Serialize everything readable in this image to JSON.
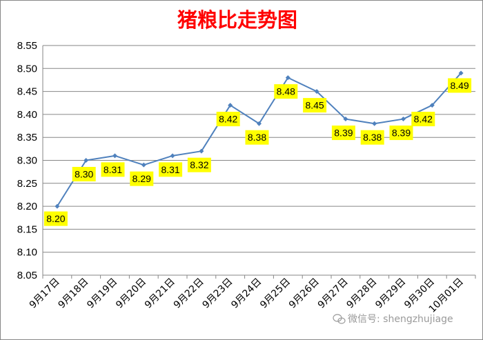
{
  "chart_data": {
    "type": "line",
    "title": "猪粮比走势图",
    "categories": [
      "9月17日",
      "9月18日",
      "9月19日",
      "9月20日",
      "9月21日",
      "9月22日",
      "9月23日",
      "9月24日",
      "9月25日",
      "9月26日",
      "9月27日",
      "9月28日",
      "9月29日",
      "9月30日",
      "10月01日"
    ],
    "series": [
      {
        "values": [
          8.2,
          8.3,
          8.31,
          8.29,
          8.31,
          8.32,
          8.42,
          8.38,
          8.48,
          8.45,
          8.39,
          8.38,
          8.39,
          8.42,
          8.49
        ]
      }
    ],
    "ylim": [
      8.05,
      8.55
    ],
    "yticks": [
      "8.05",
      "8.10",
      "8.15",
      "8.20",
      "8.25",
      "8.30",
      "8.35",
      "8.40",
      "8.45",
      "8.50",
      "8.55"
    ],
    "data_labels": [
      "8.20",
      "8.30",
      "8.31",
      "8.29",
      "8.31",
      "8.32",
      "8.42",
      "8.38",
      "8.48",
      "8.45",
      "8.39",
      "8.38",
      "8.39",
      "8.42",
      "8.49"
    ],
    "grid": true,
    "legend": "none",
    "colors": {
      "line": "#4f81bd",
      "label_bg": "#ffff00",
      "title": "#ff0000",
      "grid": "#868686"
    }
  },
  "watermark": {
    "text": "微信号: shengzhujiage"
  }
}
